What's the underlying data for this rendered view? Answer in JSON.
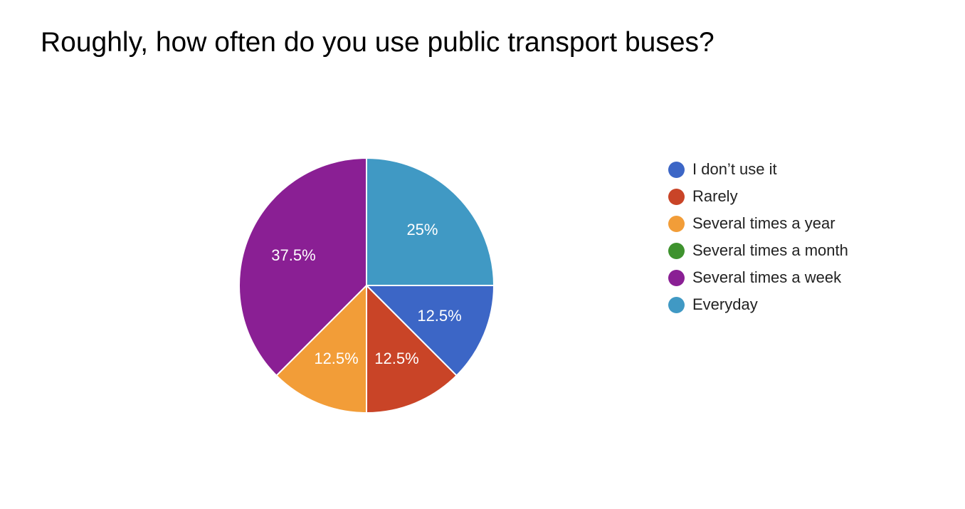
{
  "chart_data": {
    "type": "pie",
    "title": "Roughly, how often do you use public transport buses?",
    "legend_position": "right",
    "slices": [
      {
        "name": "I don’t use it",
        "value": 12.5,
        "label": "12.5%",
        "color": "#3c66c6"
      },
      {
        "name": "Rarely",
        "value": 12.5,
        "label": "12.5%",
        "color": "#c94427"
      },
      {
        "name": "Several times a year",
        "value": 12.5,
        "label": "12.5%",
        "color": "#f29d38"
      },
      {
        "name": "Several times a month",
        "value": 0,
        "label": "",
        "color": "#3e922e"
      },
      {
        "name": "Several times a week",
        "value": 37.5,
        "label": "37.5%",
        "color": "#8a1f94"
      },
      {
        "name": "Everyday",
        "value": 25,
        "label": "25%",
        "color": "#4099c4"
      }
    ]
  }
}
